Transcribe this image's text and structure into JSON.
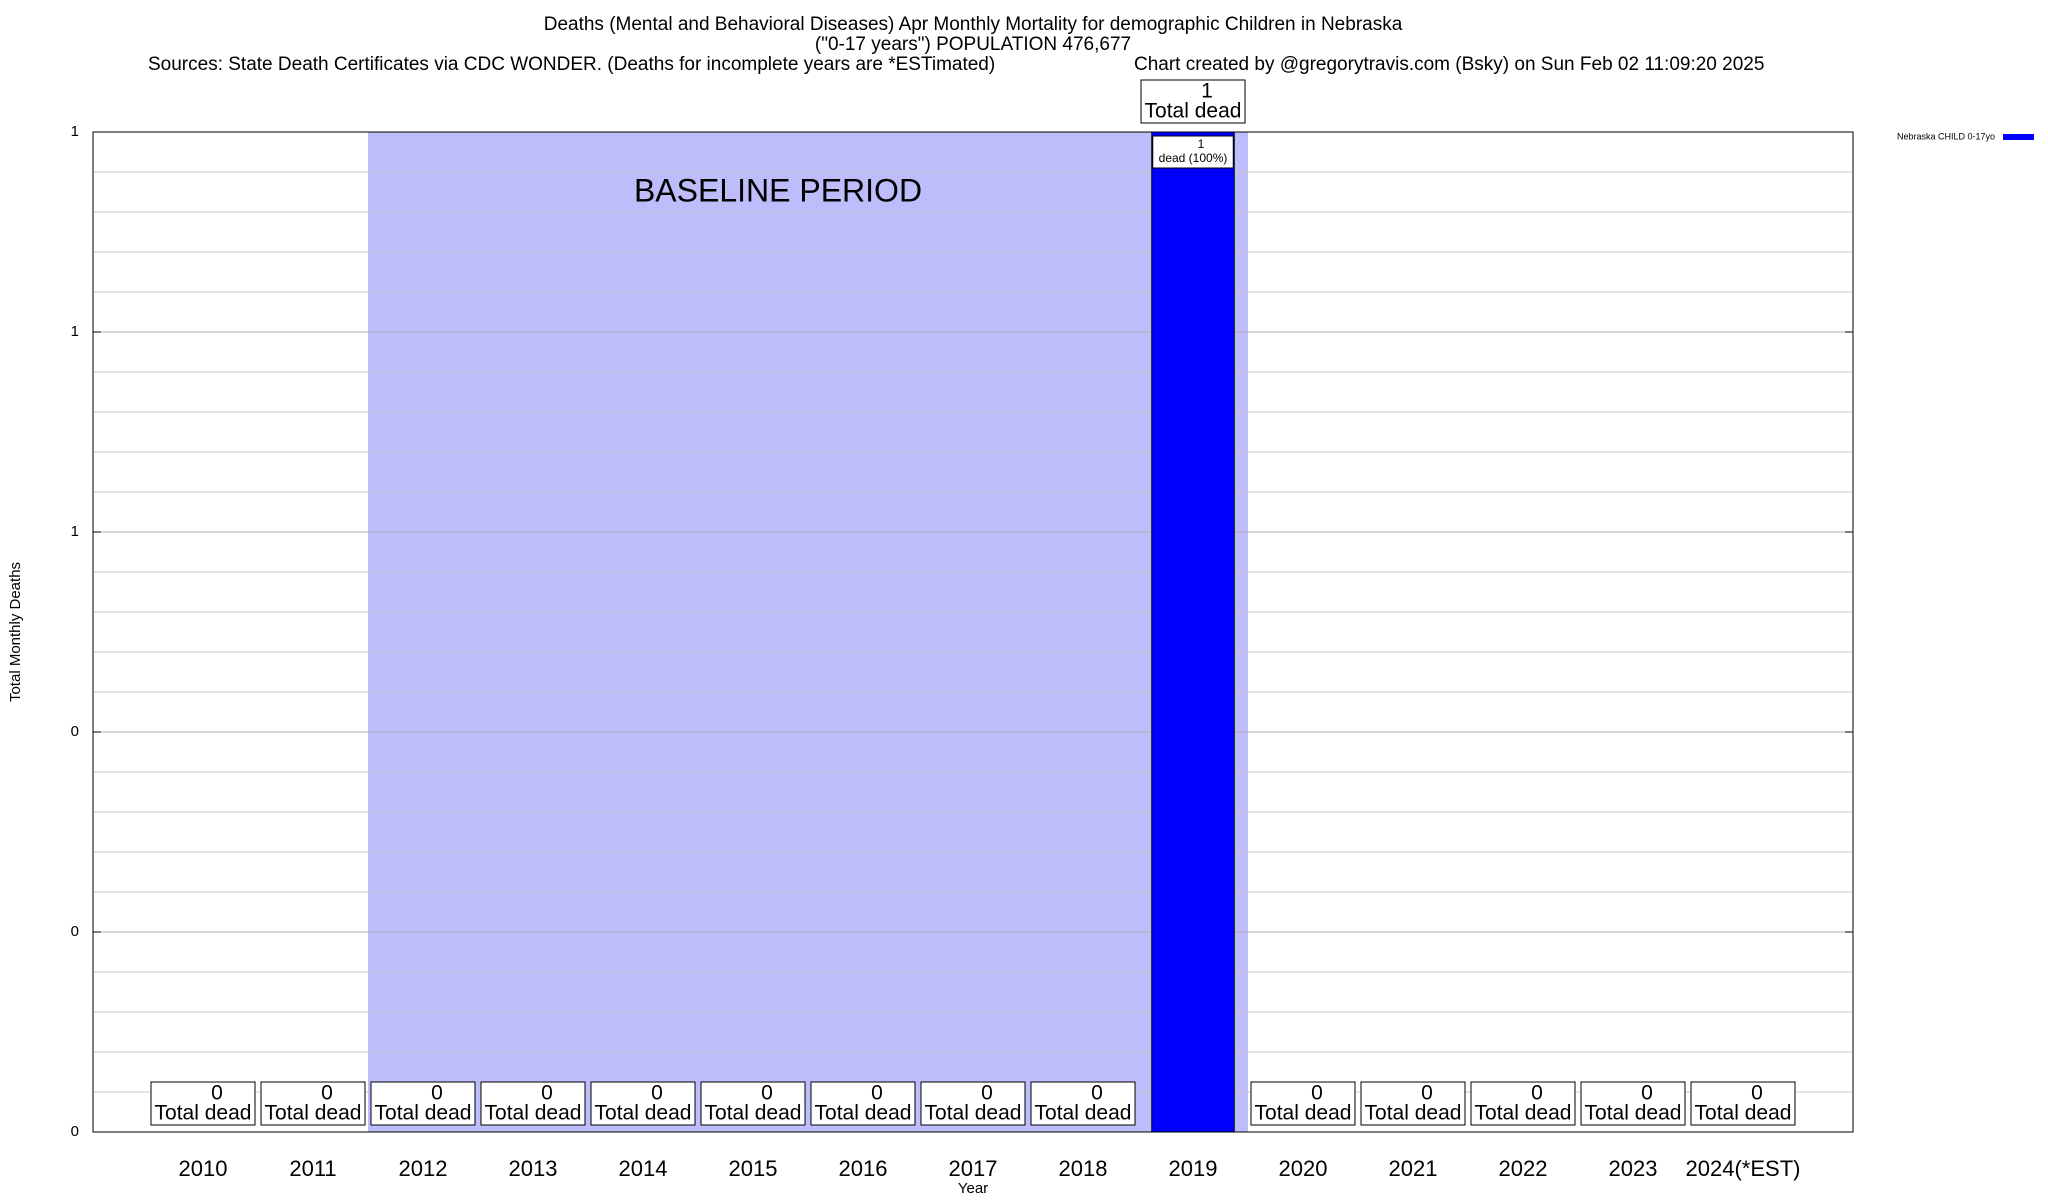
{
  "chart_data": {
    "type": "bar",
    "title": "Deaths (Mental and Behavioral Diseases) Apr Monthly Mortality for demographic Children in Nebraska",
    "title_line2": "(\"0-17 years\") POPULATION 476,677",
    "subtitle": "Sources: State Death Certificates via CDC WONDER. (Deaths for incomplete years are *ESTimated)",
    "credit": "Chart created by @gregorytravis.com (Bsky) on Sun Feb 02 11:09:20 2025",
    "x_label": "Year",
    "y_label": "Total Monthly Deaths",
    "categories": [
      "2010",
      "2011",
      "2012",
      "2013",
      "2014",
      "2015",
      "2016",
      "2017",
      "2018",
      "2019",
      "2020",
      "2021",
      "2022",
      "2023",
      "2024(*EST)"
    ],
    "series": [
      {
        "name": "Nebraska CHILD 0-17yo",
        "color": "#0000ff",
        "values": [
          0,
          0,
          0,
          0,
          0,
          0,
          0,
          0,
          0,
          1,
          0,
          0,
          0,
          0,
          0
        ],
        "inner_labels": [
          null,
          null,
          null,
          null,
          null,
          null,
          null,
          null,
          null,
          "dead (100%)",
          null,
          null,
          null,
          null,
          null
        ]
      }
    ],
    "total_label": "Total dead",
    "baseline": {
      "label": "BASELINE PERIOD",
      "start": "2012",
      "end": "2019",
      "color": "#bdbdfb"
    },
    "ylim": [
      0,
      1
    ],
    "yticks": [
      0,
      {
        "value": 0.2,
        "label": "0"
      },
      {
        "value": 0.4,
        "label": "0"
      },
      {
        "value": 0.6,
        "label": "1"
      },
      {
        "value": 0.8,
        "label": "1"
      },
      1
    ],
    "minor_yticks": [
      0.04,
      0.08,
      0.12,
      0.16,
      0.24,
      0.28,
      0.32,
      0.36,
      0.44,
      0.48,
      0.52,
      0.56,
      0.64,
      0.68,
      0.72,
      0.76,
      0.84,
      0.88,
      0.92,
      0.96
    ],
    "grid": true,
    "legend": "top-right"
  }
}
